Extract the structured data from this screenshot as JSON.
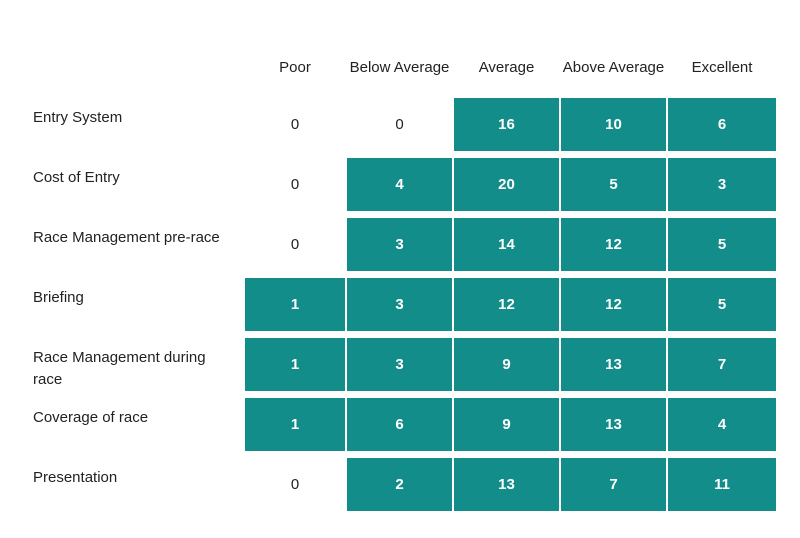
{
  "chart_data": {
    "type": "heatmap",
    "title": "",
    "columns": [
      "Poor",
      "Below Average",
      "Average",
      "Above Average",
      "Excellent"
    ],
    "rows": [
      {
        "label": "Entry System",
        "values": [
          0,
          0,
          16,
          10,
          6
        ]
      },
      {
        "label": "Cost of Entry",
        "values": [
          0,
          4,
          20,
          5,
          3
        ]
      },
      {
        "label": "Race Management pre-race",
        "values": [
          0,
          3,
          14,
          12,
          5
        ]
      },
      {
        "label": "Briefing",
        "values": [
          1,
          3,
          12,
          12,
          5
        ]
      },
      {
        "label": "Race Management during race",
        "values": [
          1,
          3,
          9,
          13,
          7
        ]
      },
      {
        "label": "Coverage of race",
        "values": [
          1,
          6,
          9,
          13,
          4
        ]
      },
      {
        "label": "Presentation",
        "values": [
          0,
          2,
          13,
          7,
          11
        ]
      }
    ],
    "fill_color": "#138d8a",
    "empty_cell_style": "no fill when value is 0"
  }
}
